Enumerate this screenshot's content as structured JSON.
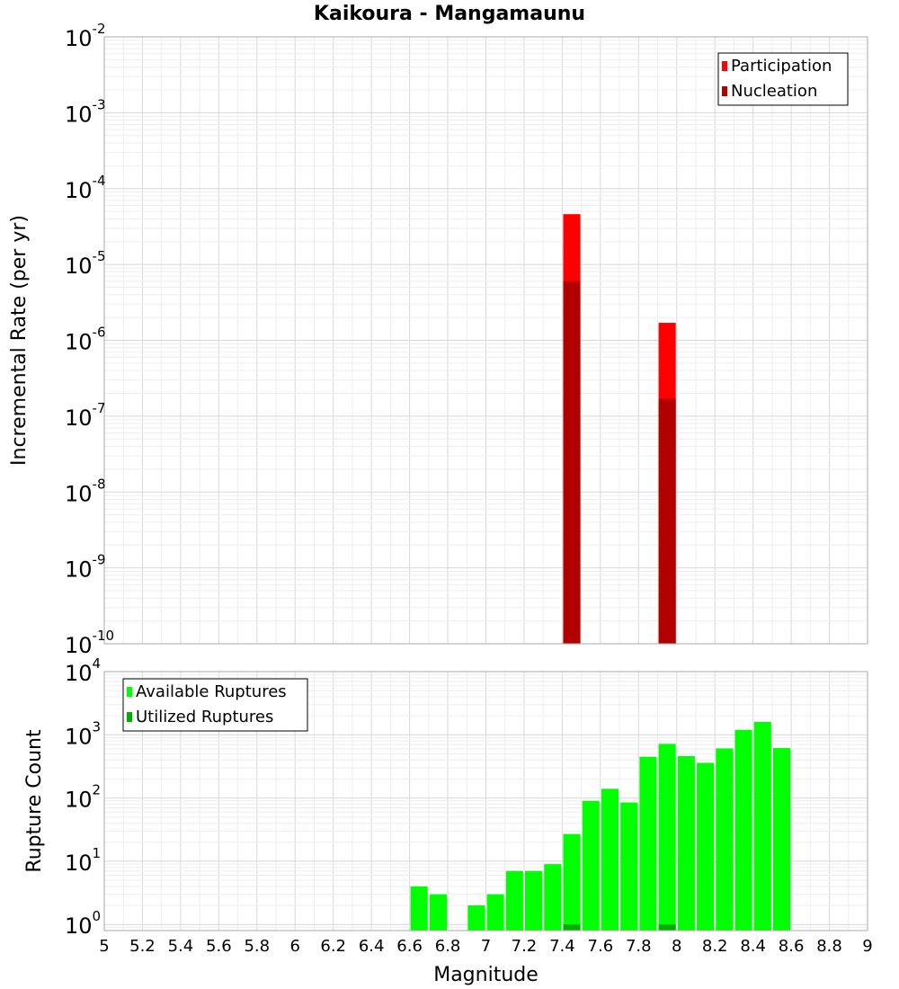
{
  "title": "Kaikoura - Mangamaunu",
  "chart_data": [
    {
      "type": "bar",
      "name": "rate-panel",
      "ylabel": "Incremental Rate (per yr)",
      "xlabel": "",
      "xlim": [
        5,
        9
      ],
      "ylim": [
        1e-10,
        0.01
      ],
      "yscale": "log",
      "ytick_labels": [
        {
          "base": "10",
          "exp": "-10"
        },
        {
          "base": "10",
          "exp": "-9"
        },
        {
          "base": "10",
          "exp": "-8"
        },
        {
          "base": "10",
          "exp": "-7"
        },
        {
          "base": "10",
          "exp": "-6"
        },
        {
          "base": "10",
          "exp": "-5"
        },
        {
          "base": "10",
          "exp": "-4"
        },
        {
          "base": "10",
          "exp": "-3"
        },
        {
          "base": "10",
          "exp": "-2"
        }
      ],
      "legend_position": "top-right",
      "bar_width": 0.09,
      "series": [
        {
          "name": "Participation",
          "color": "#ff0000",
          "x": [
            7.45,
            7.95
          ],
          "values": [
            4.6e-05,
            1.7e-06
          ]
        },
        {
          "name": "Nucleation",
          "color": "#b00000",
          "x": [
            7.45,
            7.95
          ],
          "values": [
            6e-06,
            1.7e-07
          ]
        }
      ]
    },
    {
      "type": "bar",
      "name": "count-panel",
      "ylabel": "Rupture Count",
      "xlabel": "Magnitude",
      "xlim": [
        5,
        9
      ],
      "ylim": [
        0.8,
        10000
      ],
      "yscale": "log",
      "ytick_labels": [
        {
          "base": "10",
          "exp": "0"
        },
        {
          "base": "10",
          "exp": "1"
        },
        {
          "base": "10",
          "exp": "2"
        },
        {
          "base": "10",
          "exp": "3"
        },
        {
          "base": "10",
          "exp": "4"
        }
      ],
      "xtick_labels": [
        "5",
        "5.2",
        "5.4",
        "5.6",
        "5.8",
        "6",
        "6.2",
        "6.4",
        "6.6",
        "6.8",
        "7",
        "7.2",
        "7.4",
        "7.6",
        "7.8",
        "8",
        "8.2",
        "8.4",
        "8.6",
        "8.8",
        "9"
      ],
      "legend_position": "top-left",
      "bar_width": 0.09,
      "series": [
        {
          "name": "Available Ruptures",
          "color": "#00ff00",
          "x": [
            6.65,
            6.75,
            6.95,
            7.05,
            7.15,
            7.25,
            7.35,
            7.45,
            7.55,
            7.65,
            7.75,
            7.85,
            7.95,
            8.05,
            8.15,
            8.25,
            8.35,
            8.45,
            8.55
          ],
          "values": [
            4,
            3,
            2,
            3,
            7,
            7,
            9,
            27,
            90,
            140,
            85,
            450,
            720,
            460,
            360,
            610,
            1200,
            1600,
            620
          ]
        },
        {
          "name": "Utilized Ruptures",
          "color": "#00b000",
          "x": [
            7.45,
            7.95
          ],
          "values": [
            1,
            1
          ]
        }
      ]
    }
  ]
}
